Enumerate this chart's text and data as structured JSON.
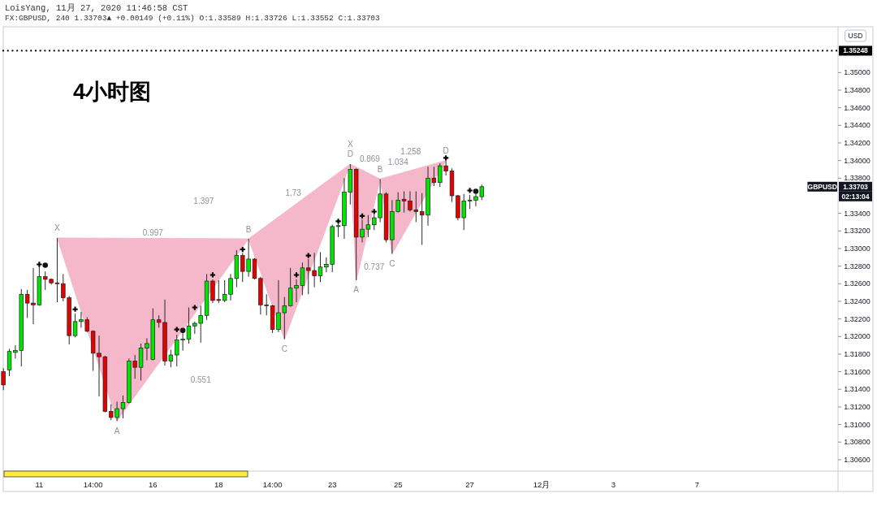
{
  "chart_data": {
    "type": "candlestick",
    "title": "4小时图",
    "subtitle": "LoisYang, 11月 27, 2020 11:46:58 CST",
    "ylabel": "USD",
    "categories": [
      null,
      null,
      null,
      null,
      null,
      null,
      "11",
      null,
      null,
      null,
      null,
      null,
      null,
      null,
      null,
      "14:00",
      null,
      null,
      null,
      null,
      null,
      null,
      null,
      null,
      null,
      "16",
      null,
      null,
      null,
      null,
      null,
      null,
      null,
      null,
      null,
      null,
      "18",
      null,
      null,
      null,
      null,
      null,
      null,
      null,
      null,
      "14:00",
      null,
      null,
      null,
      null,
      null,
      null,
      null,
      null,
      null,
      "23",
      null,
      null,
      null,
      null,
      null,
      null,
      null,
      null,
      null,
      null,
      "25",
      null,
      null,
      null,
      null,
      null,
      null,
      null,
      null,
      null,
      null,
      null,
      "27",
      null,
      null,
      null,
      null,
      null,
      null,
      null,
      null,
      null,
      null,
      null,
      "12月",
      null,
      null,
      null,
      null,
      null,
      null,
      null,
      null,
      null,
      null,
      null,
      "3",
      null,
      null,
      null,
      null,
      null,
      null,
      null,
      null,
      null,
      null,
      null,
      null,
      null,
      "7",
      null,
      null,
      null,
      null,
      null,
      null,
      null,
      null,
      null,
      null,
      null,
      null,
      null,
      null,
      null,
      null,
      null,
      null,
      null,
      null,
      null,
      null,
      null
    ],
    "ohlc": [
      [
        1.316,
        1.3164,
        1.3139,
        1.3145
      ],
      [
        1.3162,
        1.3186,
        1.3155,
        1.3183
      ],
      [
        1.3182,
        1.319,
        1.3175,
        1.3184
      ],
      [
        1.3184,
        1.3254,
        1.3166,
        1.3248
      ],
      [
        1.3248,
        1.3253,
        1.3221,
        1.3238
      ],
      [
        1.3238,
        1.3278,
        1.3214,
        1.3236
      ],
      [
        1.3236,
        1.328,
        1.3235,
        1.3268
      ],
      [
        1.3268,
        1.3274,
        1.3253,
        1.3265
      ],
      [
        1.3265,
        1.3266,
        1.3259,
        1.3261
      ],
      [
        1.3261,
        1.3312,
        1.3239,
        1.326
      ],
      [
        1.326,
        1.3271,
        1.324,
        1.3244
      ],
      [
        1.3244,
        1.3246,
        1.3191,
        1.3201
      ],
      [
        1.3201,
        1.3226,
        1.3199,
        1.3217
      ],
      [
        1.3217,
        1.3228,
        1.321,
        1.3219
      ],
      [
        1.3219,
        1.3222,
        1.3205,
        1.3206
      ],
      [
        1.3206,
        1.3207,
        1.3161,
        1.3181
      ],
      [
        1.3181,
        1.3201,
        1.3132,
        1.3177
      ],
      [
        1.3177,
        1.3178,
        1.3114,
        1.3115
      ],
      [
        1.3115,
        1.3123,
        1.3105,
        1.3108
      ],
      [
        1.3108,
        1.3126,
        1.3104,
        1.3118
      ],
      [
        1.3118,
        1.3133,
        1.3107,
        1.3125
      ],
      [
        1.3125,
        1.3175,
        1.3124,
        1.3172
      ],
      [
        1.3172,
        1.3179,
        1.3152,
        1.3165
      ],
      [
        1.3165,
        1.3192,
        1.315,
        1.3187
      ],
      [
        1.3187,
        1.3198,
        1.3173,
        1.3192
      ],
      [
        1.3174,
        1.3232,
        1.3173,
        1.3219
      ],
      [
        1.3219,
        1.3224,
        1.321,
        1.3216
      ],
      [
        1.3216,
        1.3242,
        1.3167,
        1.3172
      ],
      [
        1.3172,
        1.3185,
        1.3165,
        1.3179
      ],
      [
        1.3179,
        1.3202,
        1.3166,
        1.3196
      ],
      [
        1.3196,
        1.3204,
        1.3184,
        1.3197
      ],
      [
        1.3197,
        1.3233,
        1.3192,
        1.3212
      ],
      [
        1.3212,
        1.3217,
        1.3203,
        1.3215
      ],
      [
        1.3215,
        1.3235,
        1.3193,
        1.3224
      ],
      [
        1.3224,
        1.3271,
        1.3219,
        1.3263
      ],
      [
        1.3263,
        1.3265,
        1.3238,
        1.3241
      ],
      [
        1.3242,
        1.3264,
        1.3238,
        1.3241
      ],
      [
        1.3241,
        1.3264,
        1.3239,
        1.3248
      ],
      [
        1.3248,
        1.3271,
        1.3241,
        1.3266
      ],
      [
        1.3266,
        1.3298,
        1.3256,
        1.3292
      ],
      [
        1.3292,
        1.3295,
        1.3262,
        1.3274
      ],
      [
        1.3274,
        1.3311,
        1.3268,
        1.3288
      ],
      [
        1.3288,
        1.3289,
        1.3265,
        1.3266
      ],
      [
        1.3266,
        1.3268,
        1.3225,
        1.3236
      ],
      [
        1.3236,
        1.3248,
        1.3224,
        1.3235
      ],
      [
        1.3235,
        1.3236,
        1.3204,
        1.3208
      ],
      [
        1.3208,
        1.3264,
        1.3205,
        1.3227
      ],
      [
        1.3227,
        1.3245,
        1.3197,
        1.3235
      ],
      [
        1.3235,
        1.3278,
        1.3234,
        1.3255
      ],
      [
        1.3255,
        1.3265,
        1.3239,
        1.3258
      ],
      [
        1.3258,
        1.3284,
        1.3247,
        1.3278
      ],
      [
        1.3278,
        1.3288,
        1.3248,
        1.3275
      ],
      [
        1.3275,
        1.3295,
        1.3256,
        1.3269
      ],
      [
        1.3269,
        1.3296,
        1.3262,
        1.3279
      ],
      [
        1.3279,
        1.329,
        1.3273,
        1.3282
      ],
      [
        1.3282,
        1.3327,
        1.3273,
        1.3325
      ],
      [
        1.3325,
        1.3328,
        1.3313,
        1.3326
      ],
      [
        1.3326,
        1.338,
        1.3311,
        1.3364
      ],
      [
        1.3364,
        1.3396,
        1.335,
        1.339
      ],
      [
        1.339,
        1.3391,
        1.3264,
        1.3313
      ],
      [
        1.3313,
        1.3333,
        1.3307,
        1.3322
      ],
      [
        1.3322,
        1.3338,
        1.3313,
        1.3327
      ],
      [
        1.3327,
        1.3339,
        1.3321,
        1.3335
      ],
      [
        1.3335,
        1.3379,
        1.333,
        1.3362
      ],
      [
        1.3362,
        1.3364,
        1.3307,
        1.331
      ],
      [
        1.331,
        1.3355,
        1.3294,
        1.3342
      ],
      [
        1.3342,
        1.3364,
        1.3341,
        1.3355
      ],
      [
        1.3356,
        1.3365,
        1.3341,
        1.3354
      ],
      [
        1.3354,
        1.3365,
        1.3342,
        1.3344
      ],
      [
        1.3344,
        1.3365,
        1.333,
        1.3342
      ],
      [
        1.3342,
        1.3363,
        1.3304,
        1.3338
      ],
      [
        1.3338,
        1.3393,
        1.3326,
        1.338
      ],
      [
        1.338,
        1.3393,
        1.3371,
        1.3375
      ],
      [
        1.3375,
        1.3397,
        1.337,
        1.3394
      ],
      [
        1.3394,
        1.34,
        1.3383,
        1.3388
      ],
      [
        1.3388,
        1.3391,
        1.3353,
        1.336
      ],
      [
        1.336,
        1.3361,
        1.3332,
        1.3335
      ],
      [
        1.3335,
        1.3362,
        1.3321,
        1.3354
      ],
      [
        1.3354,
        1.3361,
        1.3345,
        1.3355
      ],
      [
        1.3355,
        1.3362,
        1.3348,
        1.3359
      ],
      [
        1.33589,
        1.33726,
        1.33552,
        1.33703
      ],
      null,
      null,
      null,
      null,
      null,
      null,
      null,
      null,
      null,
      null,
      null,
      null,
      null,
      null,
      null,
      null,
      null,
      null,
      null,
      null,
      null,
      null,
      null,
      null,
      null,
      null,
      null,
      null,
      null,
      null,
      null,
      null,
      null,
      null,
      null,
      null,
      null,
      null,
      null,
      null,
      null,
      null,
      null,
      null,
      null,
      null,
      null,
      null,
      null,
      null,
      null,
      null,
      null,
      null,
      null,
      null,
      null,
      null,
      null
    ],
    "colors": [
      "#e60000",
      "#00e600",
      "#00e600",
      "#00e600",
      "#e60000",
      "#e60000",
      "#00e600",
      "#e60000",
      "#e60000",
      "#e60000",
      "#e60000",
      "#e60000",
      "#00e600",
      "#00e600",
      "#e60000",
      "#e60000",
      "#e60000",
      "#e60000",
      "#e60000",
      "#00e600",
      "#00e600",
      "#00e600",
      "#e60000",
      "#00e600",
      "#00e600",
      "#00e600",
      "#e60000",
      "#e60000",
      "#00e600",
      "#00e600",
      "#00e600",
      "#00e600",
      "#00e600",
      "#00e600",
      "#00e600",
      "#e60000",
      "#e60000",
      "#00e600",
      "#00e600",
      "#00e600",
      "#e60000",
      "#00e600",
      "#e60000",
      "#e60000",
      "#e60000",
      "#e60000",
      "#00e600",
      "#00e600",
      "#00e600",
      "#00e600",
      "#00e600",
      "#e60000",
      "#e60000",
      "#00e600",
      "#00e600",
      "#00e600",
      "#00e600",
      "#00e600",
      "#00e600",
      "#e60000",
      "#00e600",
      "#00e600",
      "#00e600",
      "#00e600",
      "#e60000",
      "#00e600",
      "#00e600",
      "#e60000",
      "#e60000",
      "#e60000",
      "#e60000",
      "#00e600",
      "#e60000",
      "#00e600",
      "#e60000",
      "#e60000",
      "#e60000",
      "#00e600",
      "#00e600",
      "#00e600",
      "#00e600",
      null,
      null,
      null,
      null,
      null,
      null,
      null,
      null,
      null,
      null,
      null,
      null,
      null,
      null,
      null,
      null,
      null,
      null,
      null,
      null,
      null,
      null,
      null,
      null,
      null,
      null,
      null,
      null,
      null,
      null,
      null,
      null,
      null,
      null,
      null,
      null,
      null,
      null,
      null,
      null,
      null,
      null,
      null,
      null,
      null,
      null,
      null,
      null,
      null,
      null,
      null,
      null,
      null,
      null,
      null,
      null,
      null,
      null,
      null
    ],
    "series": [
      {
        "type": "scatter",
        "marker": "cross",
        "color": "#000000",
        "values": [
          null,
          null,
          null,
          null,
          null,
          null,
          1.3282,
          null,
          null,
          null,
          null,
          null,
          1.3231,
          null,
          null,
          null,
          null,
          null,
          null,
          null,
          null,
          null,
          null,
          null,
          null,
          null,
          null,
          null,
          null,
          1.3208,
          null,
          null,
          1.3233,
          null,
          null,
          1.327,
          null,
          null,
          null,
          null,
          1.3299,
          null,
          null,
          null,
          null,
          null,
          null,
          null,
          null,
          1.327,
          null,
          1.3292,
          null,
          null,
          null,
          null,
          1.3331,
          null,
          null,
          null,
          1.3337,
          null,
          1.3342,
          null,
          null,
          null,
          null,
          null,
          null,
          null,
          null,
          null,
          null,
          null,
          1.3403,
          null,
          null,
          null,
          1.3366,
          null,
          null,
          null,
          null,
          null,
          null,
          null,
          null,
          null,
          null,
          null,
          null,
          null,
          null,
          null,
          null,
          null,
          null,
          null,
          null,
          null,
          null,
          null,
          null,
          null,
          null,
          null,
          null,
          null,
          null,
          null,
          null,
          null,
          null,
          null,
          null,
          null,
          null,
          null,
          null,
          null,
          null,
          null,
          null,
          null,
          null,
          null,
          null,
          null,
          null,
          null,
          null,
          null,
          null,
          null,
          null,
          null,
          null,
          null,
          null,
          null
        ]
      },
      {
        "type": "scatter",
        "marker": "circle",
        "color": "#111111",
        "values": [
          null,
          null,
          null,
          null,
          null,
          null,
          null,
          1.3281,
          null,
          null,
          null,
          null,
          null,
          null,
          null,
          null,
          null,
          null,
          null,
          null,
          null,
          null,
          null,
          null,
          null,
          null,
          null,
          null,
          null,
          null,
          1.3207,
          null,
          null,
          null,
          null,
          null,
          null,
          null,
          null,
          null,
          null,
          null,
          null,
          null,
          null,
          null,
          null,
          null,
          null,
          null,
          null,
          null,
          null,
          null,
          null,
          null,
          null,
          null,
          null,
          null,
          null,
          null,
          null,
          null,
          null,
          null,
          null,
          null,
          null,
          null,
          null,
          null,
          null,
          null,
          null,
          null,
          null,
          null,
          null,
          1.3365,
          null,
          null,
          null,
          null,
          null,
          null,
          null,
          null,
          null,
          null,
          null,
          null,
          null,
          null,
          null,
          null,
          null,
          null,
          null,
          null,
          null,
          null,
          null,
          null,
          null,
          null,
          null,
          null,
          null,
          null,
          null,
          null,
          null,
          null,
          null,
          null,
          null,
          null,
          null,
          null,
          null,
          null,
          null,
          null,
          null,
          null,
          null,
          null,
          null,
          null,
          null,
          null,
          null,
          null,
          null,
          null,
          null,
          null,
          null,
          null
        ]
      }
    ],
    "ylim": [
      1.3047,
      1.3552
    ],
    "yticks": [
      {
        "value": 1.306,
        "label": "1.30600"
      },
      {
        "value": 1.308,
        "label": "1.30800"
      },
      {
        "value": 1.31,
        "label": "1.31000"
      },
      {
        "value": 1.312,
        "label": "1.31200"
      },
      {
        "value": 1.314,
        "label": "1.31400"
      },
      {
        "value": 1.316,
        "label": "1.31600"
      },
      {
        "value": 1.318,
        "label": "1.31800"
      },
      {
        "value": 1.32,
        "label": "1.32000"
      },
      {
        "value": 1.322,
        "label": "1.32200"
      },
      {
        "value": 1.324,
        "label": "1.32400"
      },
      {
        "value": 1.326,
        "label": "1.32600"
      },
      {
        "value": 1.328,
        "label": "1.32800"
      },
      {
        "value": 1.33,
        "label": "1.33000"
      },
      {
        "value": 1.332,
        "label": "1.33200"
      },
      {
        "value": 1.334,
        "label": "1.33400"
      },
      {
        "value": 1.338,
        "label": "1.33800"
      },
      {
        "value": 1.34,
        "label": "1.34000"
      },
      {
        "value": 1.342,
        "label": "1.34200"
      },
      {
        "value": 1.344,
        "label": "1.34400"
      },
      {
        "value": 1.346,
        "label": "1.34600"
      },
      {
        "value": 1.348,
        "label": "1.34800"
      },
      {
        "value": 1.35,
        "label": "1.35000"
      }
    ],
    "ref_lines": [
      {
        "axis": "y",
        "value": 1.35248,
        "label": "1.35248",
        "color": "#000000",
        "line_style": "dotted"
      }
    ],
    "annotations": [
      "FX:GBPUSD, 240 1.33703▲ +0.00149 (+0.11%) O:1.33589 H:1.33726 L:1.33552 C:1.33703",
      {
        "text": "X",
        "y": 1.3312
      },
      {
        "text": "A",
        "y": 1.3104
      },
      {
        "text": "B",
        "y": 1.3311
      },
      {
        "text": "C",
        "y": 1.3197
      },
      {
        "text": "D",
        "y": 1.3396
      },
      "0.997",
      "1.397",
      "0.551",
      "1.73",
      {
        "text": "X",
        "y": 1.3396
      },
      {
        "text": "A",
        "y": 1.3264
      },
      {
        "text": "B",
        "y": 1.3379
      },
      {
        "text": "C",
        "y": 1.3294
      },
      {
        "text": "D",
        "y": 1.34
      },
      "0.869",
      "1.034",
      "0.737",
      "1.258",
      {
        "text": "GBPUSD",
        "y": 1.33703
      },
      "1.33703",
      "02:13:04"
    ]
  }
}
